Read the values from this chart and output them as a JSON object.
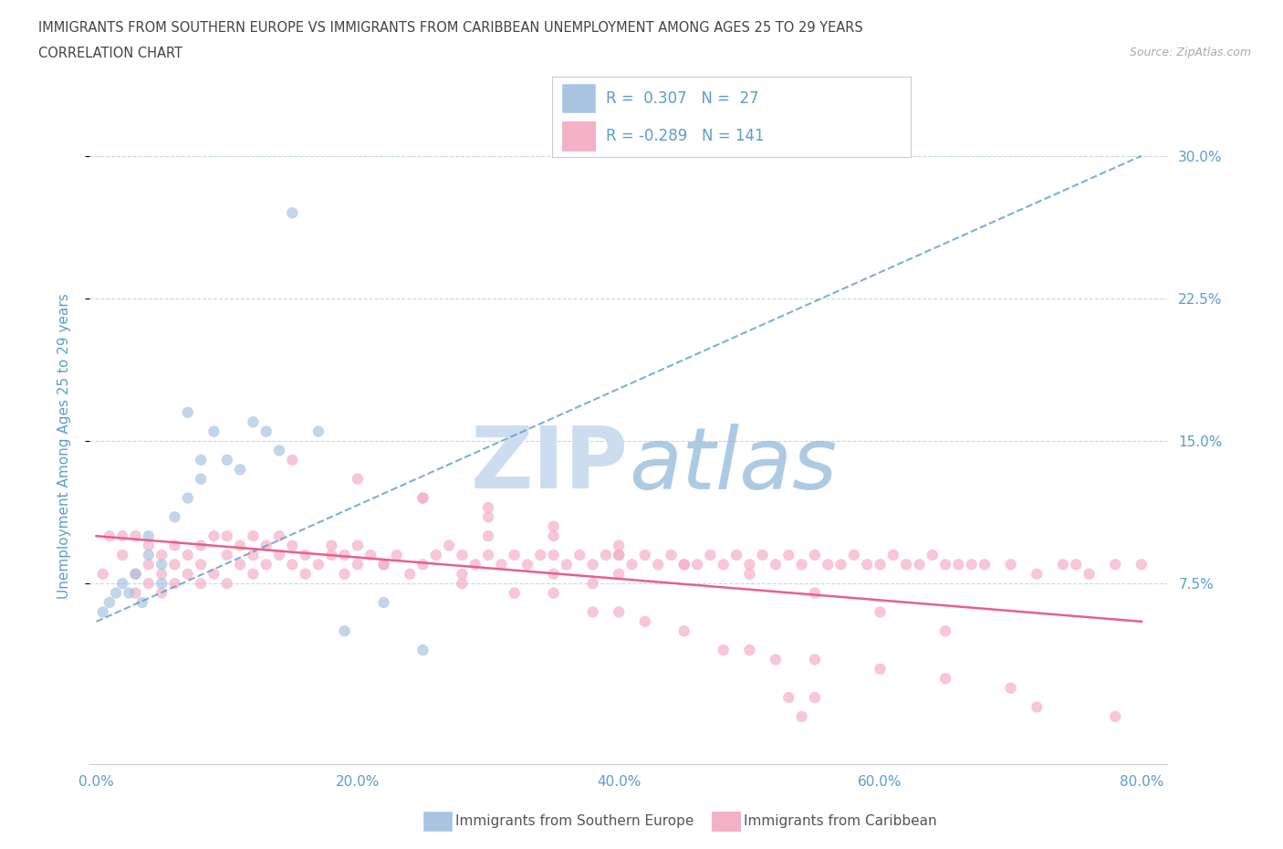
{
  "title_line1": "IMMIGRANTS FROM SOUTHERN EUROPE VS IMMIGRANTS FROM CARIBBEAN UNEMPLOYMENT AMONG AGES 25 TO 29 YEARS",
  "title_line2": "CORRELATION CHART",
  "source": "Source: ZipAtlas.com",
  "ylabel": "Unemployment Among Ages 25 to 29 years",
  "x_legend_blue": "Immigrants from Southern Europe",
  "x_legend_pink": "Immigrants from Caribbean",
  "R_blue": 0.307,
  "N_blue": 27,
  "R_pink": -0.289,
  "N_pink": 141,
  "xlim": [
    -0.005,
    0.82
  ],
  "ylim": [
    -0.02,
    0.315
  ],
  "yticks": [
    0.075,
    0.15,
    0.225,
    0.3
  ],
  "ytick_labels": [
    "7.5%",
    "15.0%",
    "22.5%",
    "30.0%"
  ],
  "xticks": [
    0.0,
    0.2,
    0.4,
    0.6,
    0.8
  ],
  "xtick_labels": [
    "0.0%",
    "20.0%",
    "40.0%",
    "60.0%",
    "80.0%"
  ],
  "blue_color": "#a8c4e0",
  "blue_line_color": "#5b9bd5",
  "pink_color": "#f4b0c4",
  "pink_line_color": "#e8608a",
  "axis_label_color": "#5b9bd5",
  "title_color": "#555555",
  "watermark_color": "#ddeeff",
  "blue_scatter_x": [
    0.005,
    0.01,
    0.015,
    0.02,
    0.025,
    0.03,
    0.035,
    0.04,
    0.04,
    0.05,
    0.05,
    0.06,
    0.07,
    0.07,
    0.08,
    0.08,
    0.09,
    0.1,
    0.11,
    0.12,
    0.13,
    0.14,
    0.15,
    0.17,
    0.19,
    0.22,
    0.25
  ],
  "blue_scatter_y": [
    0.06,
    0.065,
    0.07,
    0.075,
    0.07,
    0.08,
    0.065,
    0.09,
    0.1,
    0.075,
    0.085,
    0.11,
    0.12,
    0.165,
    0.13,
    0.14,
    0.155,
    0.14,
    0.135,
    0.16,
    0.155,
    0.145,
    0.27,
    0.155,
    0.05,
    0.065,
    0.04
  ],
  "pink_scatter_x": [
    0.005,
    0.01,
    0.02,
    0.02,
    0.03,
    0.03,
    0.03,
    0.04,
    0.04,
    0.04,
    0.05,
    0.05,
    0.05,
    0.06,
    0.06,
    0.06,
    0.07,
    0.07,
    0.08,
    0.08,
    0.08,
    0.09,
    0.09,
    0.1,
    0.1,
    0.1,
    0.11,
    0.11,
    0.12,
    0.12,
    0.12,
    0.13,
    0.13,
    0.14,
    0.14,
    0.15,
    0.15,
    0.16,
    0.16,
    0.17,
    0.18,
    0.19,
    0.19,
    0.2,
    0.2,
    0.21,
    0.22,
    0.23,
    0.24,
    0.25,
    0.26,
    0.27,
    0.28,
    0.28,
    0.29,
    0.3,
    0.3,
    0.31,
    0.32,
    0.33,
    0.34,
    0.35,
    0.35,
    0.36,
    0.37,
    0.38,
    0.38,
    0.39,
    0.4,
    0.4,
    0.41,
    0.42,
    0.43,
    0.44,
    0.45,
    0.46,
    0.47,
    0.48,
    0.49,
    0.5,
    0.51,
    0.52,
    0.53,
    0.54,
    0.55,
    0.56,
    0.57,
    0.58,
    0.59,
    0.6,
    0.61,
    0.62,
    0.63,
    0.64,
    0.65,
    0.66,
    0.67,
    0.68,
    0.7,
    0.72,
    0.74,
    0.75,
    0.76,
    0.78,
    0.8,
    0.25,
    0.3,
    0.35,
    0.4,
    0.15,
    0.2,
    0.25,
    0.3,
    0.35,
    0.4,
    0.45,
    0.5,
    0.55,
    0.6,
    0.65,
    0.18,
    0.22,
    0.28,
    0.32,
    0.38,
    0.42,
    0.48,
    0.52,
    0.53,
    0.54,
    0.55,
    0.35,
    0.4,
    0.45,
    0.5,
    0.55,
    0.6,
    0.65,
    0.7,
    0.72,
    0.78
  ],
  "pink_scatter_y": [
    0.08,
    0.1,
    0.09,
    0.1,
    0.07,
    0.08,
    0.1,
    0.075,
    0.085,
    0.095,
    0.07,
    0.08,
    0.09,
    0.075,
    0.085,
    0.095,
    0.08,
    0.09,
    0.075,
    0.085,
    0.095,
    0.08,
    0.1,
    0.075,
    0.09,
    0.1,
    0.085,
    0.095,
    0.08,
    0.09,
    0.1,
    0.085,
    0.095,
    0.09,
    0.1,
    0.085,
    0.095,
    0.08,
    0.09,
    0.085,
    0.095,
    0.08,
    0.09,
    0.085,
    0.095,
    0.09,
    0.085,
    0.09,
    0.08,
    0.085,
    0.09,
    0.095,
    0.08,
    0.09,
    0.085,
    0.09,
    0.1,
    0.085,
    0.09,
    0.085,
    0.09,
    0.08,
    0.09,
    0.085,
    0.09,
    0.075,
    0.085,
    0.09,
    0.08,
    0.09,
    0.085,
    0.09,
    0.085,
    0.09,
    0.085,
    0.085,
    0.09,
    0.085,
    0.09,
    0.085,
    0.09,
    0.085,
    0.09,
    0.085,
    0.09,
    0.085,
    0.085,
    0.09,
    0.085,
    0.085,
    0.09,
    0.085,
    0.085,
    0.09,
    0.085,
    0.085,
    0.085,
    0.085,
    0.085,
    0.08,
    0.085,
    0.085,
    0.08,
    0.085,
    0.085,
    0.12,
    0.11,
    0.1,
    0.09,
    0.14,
    0.13,
    0.12,
    0.115,
    0.105,
    0.095,
    0.085,
    0.08,
    0.07,
    0.06,
    0.05,
    0.09,
    0.085,
    0.075,
    0.07,
    0.06,
    0.055,
    0.04,
    0.035,
    0.015,
    0.005,
    0.015,
    0.07,
    0.06,
    0.05,
    0.04,
    0.035,
    0.03,
    0.025,
    0.02,
    0.01,
    0.005
  ],
  "blue_trend_x": [
    0.0,
    0.8
  ],
  "blue_trend_y": [
    0.055,
    0.3
  ],
  "pink_trend_x": [
    0.0,
    0.8
  ],
  "pink_trend_y": [
    0.1,
    0.055
  ]
}
